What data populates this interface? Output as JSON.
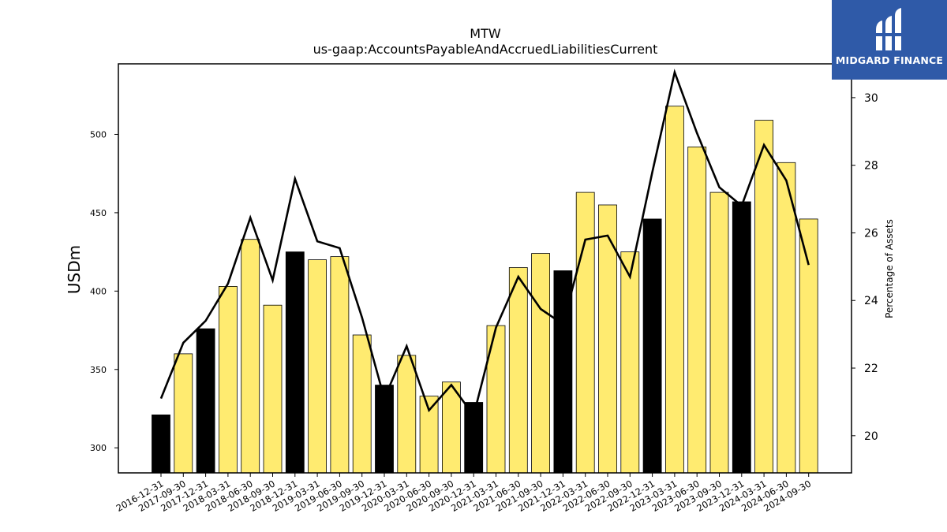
{
  "chart_data": {
    "type": "bar",
    "title": "MTW",
    "subtitle": "us-gaap:AccountsPayableAndAccruedLiabilitiesCurrent",
    "ylabel": "USDm",
    "y2label": "Percentage of Assets",
    "ylim": [
      284,
      545
    ],
    "y2lim": [
      18.9,
      31.0
    ],
    "yticks": [
      300,
      350,
      400,
      450,
      500
    ],
    "y2ticks": [
      20,
      22,
      24,
      26,
      28,
      30
    ],
    "categories": [
      "2016-12-31",
      "2017-09-30",
      "2017-12-31",
      "2018-03-31",
      "2018-06-30",
      "2018-09-30",
      "2018-12-31",
      "2019-03-31",
      "2019-06-30",
      "2019-09-30",
      "2019-12-31",
      "2020-03-31",
      "2020-06-30",
      "2020-09-30",
      "2020-12-31",
      "2021-03-31",
      "2021-06-30",
      "2021-09-30",
      "2021-12-31",
      "2022-03-31",
      "2022-06-30",
      "2022-09-30",
      "2022-12-31",
      "2023-03-31",
      "2023-06-30",
      "2023-09-30",
      "2023-12-31",
      "2024-03-31",
      "2024-06-30",
      "2024-09-30"
    ],
    "series": [
      {
        "kind": "bar",
        "values": [
          321,
          360,
          376,
          403,
          433,
          391,
          425,
          420,
          422,
          372,
          340,
          359,
          333,
          342,
          329,
          378,
          415,
          424,
          413,
          463,
          455,
          425,
          446,
          518,
          492,
          463,
          457,
          509,
          482,
          446
        ],
        "fiscal_year_end": [
          true,
          false,
          true,
          false,
          false,
          false,
          true,
          false,
          false,
          false,
          true,
          false,
          false,
          false,
          true,
          false,
          false,
          false,
          true,
          false,
          false,
          false,
          true,
          false,
          false,
          false,
          true,
          false,
          false,
          false
        ]
      },
      {
        "kind": "line",
        "axis": "right",
        "values": [
          21.1,
          22.75,
          23.4,
          24.5,
          26.45,
          24.6,
          27.6,
          25.75,
          25.55,
          23.5,
          21.1,
          22.65,
          20.75,
          21.5,
          20.6,
          23.2,
          24.7,
          23.75,
          23.3,
          25.8,
          25.92,
          24.7,
          27.8,
          30.75,
          28.95,
          27.35,
          26.8,
          28.6,
          27.55,
          25.05
        ]
      }
    ],
    "colors": {
      "bar": "#ffeb70",
      "bar_fiscal_year_end": "#000000",
      "line": "#000000"
    },
    "grid": false
  },
  "logo": {
    "text": "MIDGARD FINANCE",
    "icon": "midgard-logo-icon",
    "color": "#2f5aa8"
  }
}
